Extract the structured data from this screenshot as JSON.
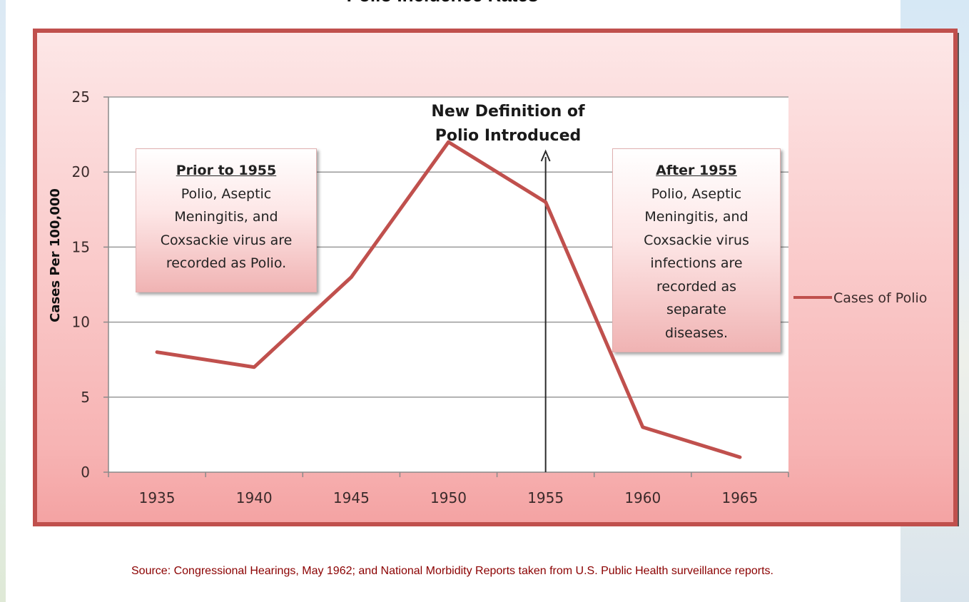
{
  "page": {
    "top_title_fragment": "Polio Incidence Rates",
    "source": "Source: Congressional Hearings, May 1962; and National Morbidity Reports taken from U.S. Public Health surveillance reports."
  },
  "colors": {
    "series_line": "#c0504d",
    "frame": "#c0504d",
    "source_text": "#8b0000"
  },
  "annotations": {
    "new_definition": [
      "New Definition of",
      "Polio Introduced"
    ],
    "prior_box": {
      "heading": "Prior to 1955",
      "lines": [
        "Polio, Aseptic",
        "Meningitis, and",
        "Coxsackie virus are",
        "recorded as Polio."
      ]
    },
    "after_box": {
      "heading": "After 1955",
      "lines": [
        "Polio, Aseptic",
        "Meningitis, and",
        "Coxsackie virus",
        "infections are",
        "recorded as",
        "separate",
        "diseases."
      ]
    }
  },
  "chart_data": {
    "type": "line",
    "x": [
      "1935",
      "1940",
      "1945",
      "1950",
      "1955",
      "1960",
      "1965"
    ],
    "series": [
      {
        "name": "Cases of Polio",
        "values": [
          8,
          7,
          13,
          22,
          18,
          3,
          1
        ]
      }
    ],
    "ylabel": "Cases Per 100,000",
    "xlabel": "",
    "ylim": [
      0,
      25
    ],
    "yticks": [
      0,
      5,
      10,
      15,
      20,
      25
    ],
    "marker_x": "1955",
    "grid": true,
    "legend": "right"
  }
}
